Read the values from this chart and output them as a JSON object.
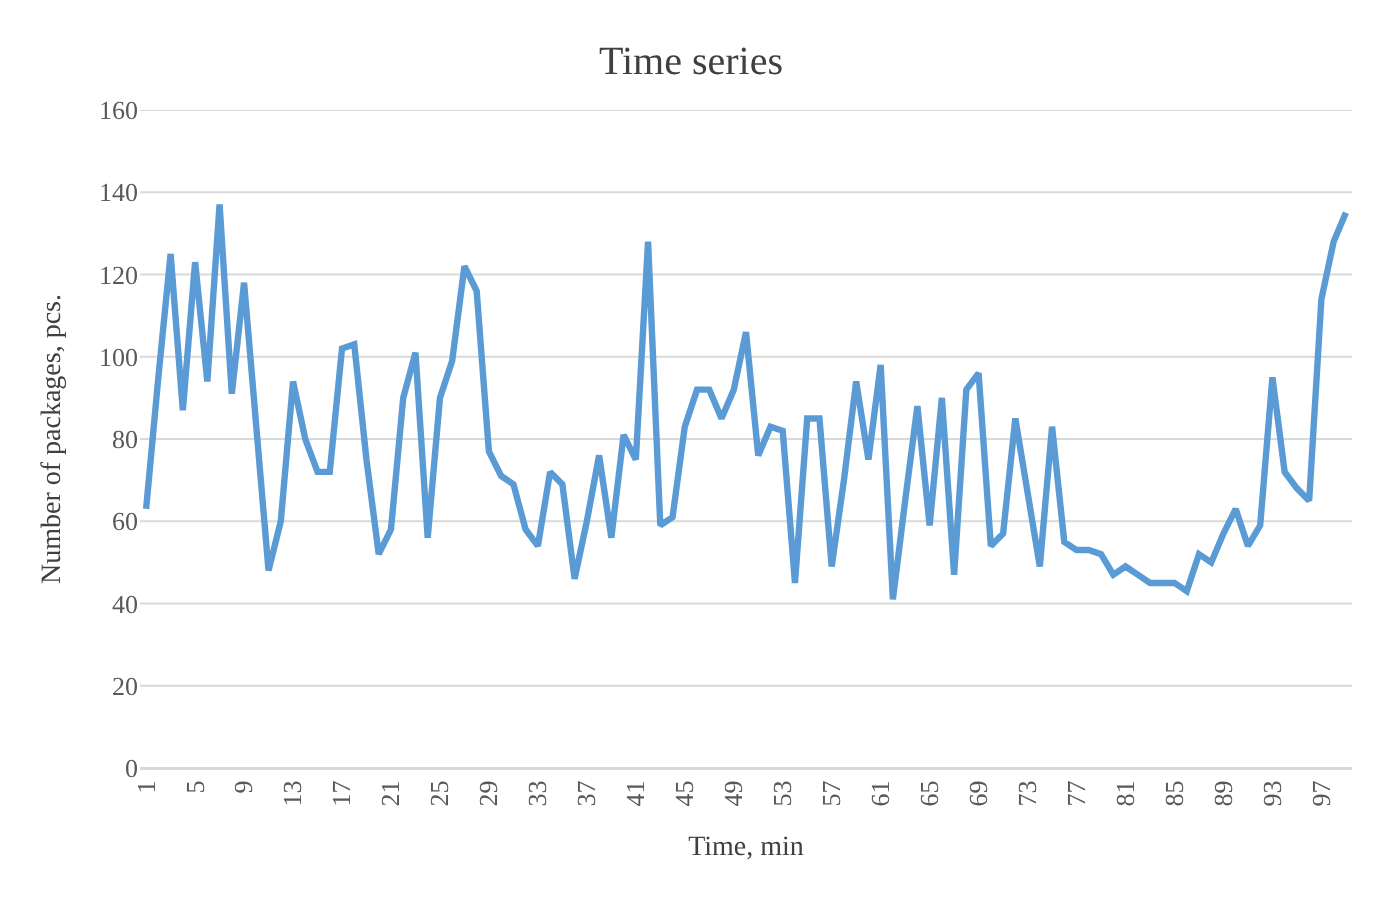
{
  "chart_data": {
    "type": "line",
    "title": "Time series",
    "xlabel": "Time, min",
    "ylabel": "Number of packages, pcs.",
    "categories": [
      "1",
      null,
      null,
      null,
      "5",
      null,
      null,
      null,
      "9",
      null,
      null,
      null,
      "13",
      null,
      null,
      null,
      "17",
      null,
      null,
      null,
      "21",
      null,
      null,
      null,
      "25",
      null,
      null,
      null,
      "29",
      null,
      null,
      null,
      "33",
      null,
      null,
      null,
      "37",
      null,
      null,
      null,
      "41",
      null,
      null,
      null,
      "45",
      null,
      null,
      null,
      "49",
      null,
      null,
      null,
      "53",
      null,
      null,
      null,
      "57",
      null,
      null,
      null,
      "61",
      null,
      null,
      null,
      "65",
      null,
      null,
      null,
      "69",
      null,
      null,
      null,
      "73",
      null,
      null,
      null,
      "77",
      null,
      null,
      null,
      "81",
      null,
      null,
      null,
      "85",
      null,
      null,
      null,
      "89",
      null,
      null,
      null,
      "93",
      null,
      null,
      null,
      "97",
      null,
      null
    ],
    "series": [
      {
        "color": "#5b9bd5",
        "values": [
          63,
          95,
          125,
          87,
          123,
          94,
          137,
          91,
          118,
          83,
          48,
          60,
          94,
          80,
          72,
          72,
          102,
          103,
          75,
          52,
          58,
          90,
          101,
          56,
          90,
          99,
          122,
          116,
          77,
          71,
          69,
          58,
          54,
          72,
          69,
          46,
          60,
          76,
          56,
          81,
          75,
          128,
          59,
          61,
          83,
          92,
          92,
          85,
          92,
          106,
          76,
          83,
          82,
          45,
          85,
          85,
          49,
          70,
          94,
          75,
          98,
          41,
          65,
          88,
          59,
          90,
          47,
          92,
          96,
          54,
          57,
          85,
          67,
          49,
          83,
          55,
          53,
          53,
          52,
          47,
          49,
          47,
          45,
          45,
          45,
          43,
          52,
          50,
          57,
          63,
          54,
          59,
          95,
          72,
          68,
          65,
          114,
          128,
          135
        ]
      }
    ],
    "ylim": [
      0,
      160
    ],
    "yticks": [
      0,
      20,
      40,
      60,
      80,
      100,
      120,
      140,
      160
    ],
    "grid": "y",
    "marker": "none",
    "line_style": "solid"
  }
}
